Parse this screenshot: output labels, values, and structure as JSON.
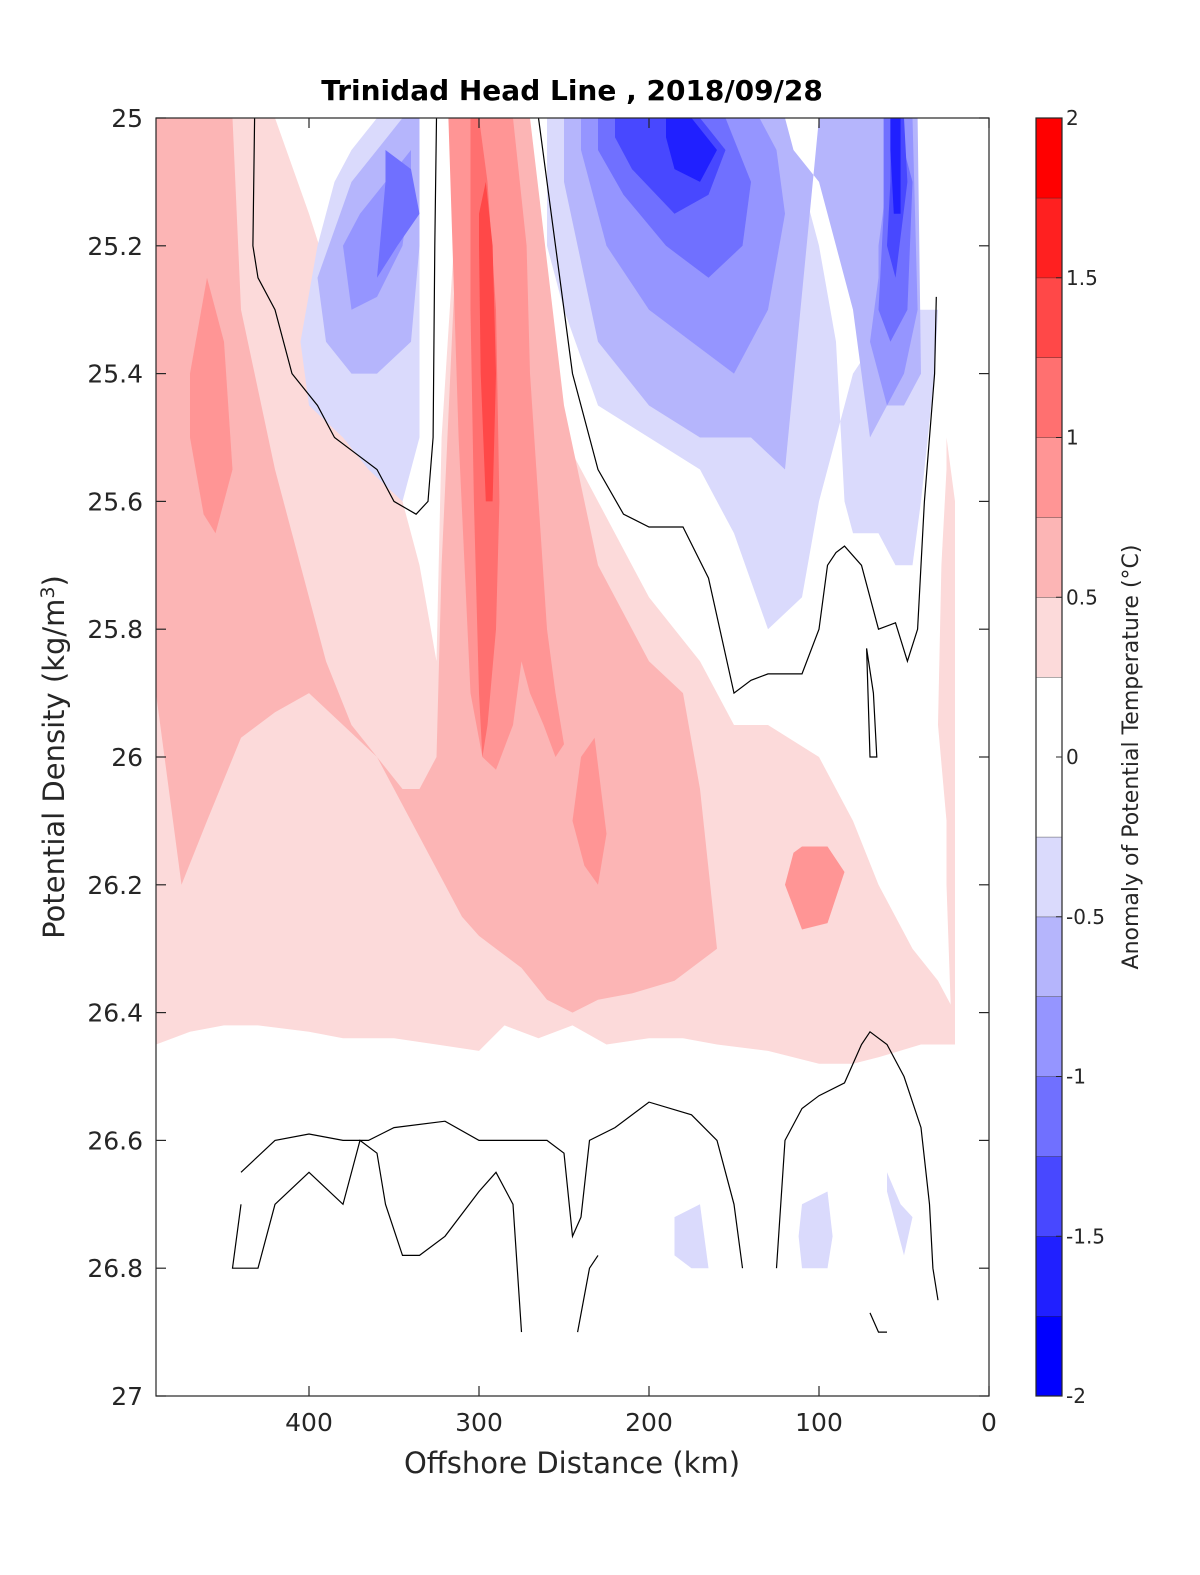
{
  "chart_data": {
    "type": "heatmap",
    "subtype": "filled-contour",
    "title": "Trinidad Head Line , 2018/09/28",
    "xlabel": "Offshore Distance (km)",
    "ylabel": "Potential Density (kg/m",
    "ylabel_superscript": "3",
    "ylabel_suffix": ")",
    "colorbar_label": "Anomaly of Potential Temperature (°C)",
    "x_axis": {
      "range": [
        490,
        0
      ],
      "reversed": true,
      "ticks": [
        400,
        300,
        200,
        100,
        0
      ],
      "tick_labels": [
        "400",
        "300",
        "200",
        "100",
        "0"
      ]
    },
    "y_axis": {
      "range": [
        25,
        27
      ],
      "reversed": true,
      "ticks": [
        25,
        25.2,
        25.4,
        25.6,
        25.8,
        26,
        26.2,
        26.4,
        26.6,
        26.8,
        27
      ],
      "tick_labels": [
        "25",
        "25.2",
        "25.4",
        "25.6",
        "25.8",
        "26",
        "26.2",
        "26.4",
        "26.6",
        "26.8",
        "27"
      ]
    },
    "colorbar": {
      "range": [
        -2,
        2
      ],
      "ticks": [
        2,
        1.5,
        1,
        0.5,
        0,
        -0.5,
        -1,
        -1.5,
        -2
      ],
      "tick_labels": [
        "2",
        "1.5",
        "1",
        "0.5",
        "0",
        "-0.5",
        "-1",
        "-1.5",
        "-2"
      ],
      "levels": [
        {
          "from": -2.0,
          "to": -1.75,
          "color": "#0000ff"
        },
        {
          "from": -1.75,
          "to": -1.5,
          "color": "#2020ff"
        },
        {
          "from": -1.5,
          "to": -1.25,
          "color": "#4848ff"
        },
        {
          "from": -1.25,
          "to": -1.0,
          "color": "#7070ff"
        },
        {
          "from": -1.0,
          "to": -0.75,
          "color": "#9595ff"
        },
        {
          "from": -0.75,
          "to": -0.5,
          "color": "#b5b5fc"
        },
        {
          "from": -0.5,
          "to": -0.25,
          "color": "#dadafc"
        },
        {
          "from": -0.25,
          "to": 0.25,
          "color": "#ffffff"
        },
        {
          "from": 0.25,
          "to": 0.5,
          "color": "#fcdada"
        },
        {
          "from": 0.5,
          "to": 0.75,
          "color": "#fcb5b5"
        },
        {
          "from": 0.75,
          "to": 1.0,
          "color": "#ff9595"
        },
        {
          "from": 1.0,
          "to": 1.25,
          "color": "#ff7070"
        },
        {
          "from": 1.25,
          "to": 1.5,
          "color": "#ff4848"
        },
        {
          "from": 1.5,
          "to": 1.75,
          "color": "#ff2020"
        },
        {
          "from": 1.75,
          "to": 2.0,
          "color": "#ff0000"
        }
      ]
    },
    "grid": false,
    "regions": [
      {
        "level": 0.375,
        "x": [
          490,
          470,
          450,
          420,
          400,
          370,
          345,
          335,
          325,
          322,
          310,
          305,
          285,
          272,
          265,
          250,
          200,
          170,
          150,
          130,
          100,
          80,
          65,
          45,
          30,
          20,
          20,
          40,
          65,
          80,
          100,
          130,
          160,
          180,
          200,
          225,
          245,
          265,
          285,
          300,
          325,
          350,
          380,
          400,
          430,
          450,
          470,
          490
        ],
        "y": [
          25.0,
          25.0,
          25.0,
          25.0,
          25.15,
          25.4,
          25.6,
          25.7,
          25.85,
          25.5,
          25.0,
          25.0,
          25.0,
          25.0,
          25.3,
          25.5,
          25.75,
          25.85,
          25.95,
          25.95,
          26.0,
          26.1,
          26.2,
          26.3,
          26.35,
          26.4,
          26.45,
          26.45,
          26.47,
          26.48,
          26.48,
          26.46,
          26.45,
          26.44,
          26.44,
          26.45,
          26.42,
          26.44,
          26.42,
          26.46,
          26.45,
          26.44,
          26.44,
          26.43,
          26.42,
          26.42,
          26.43,
          26.45
        ]
      },
      {
        "level": 0.625,
        "x": [
          490,
          480,
          460,
          445,
          440,
          420,
          400,
          390,
          375,
          360,
          345,
          335,
          325,
          322,
          310,
          300,
          280,
          270,
          250,
          230,
          200,
          180,
          170,
          160,
          185,
          210,
          230,
          245,
          260,
          275,
          290,
          300,
          310,
          320,
          340,
          360,
          380,
          400,
          420,
          440,
          460,
          475,
          490
        ],
        "y": [
          25.0,
          25.0,
          25.0,
          25.0,
          25.3,
          25.55,
          25.75,
          25.85,
          25.95,
          26.0,
          26.05,
          26.05,
          26.0,
          25.7,
          25.0,
          25.0,
          25.0,
          25.0,
          25.45,
          25.7,
          25.85,
          25.9,
          26.05,
          26.3,
          26.35,
          26.37,
          26.38,
          26.4,
          26.38,
          26.33,
          26.3,
          26.28,
          26.25,
          26.2,
          26.1,
          26.0,
          25.95,
          25.9,
          25.93,
          25.97,
          26.1,
          26.2,
          25.9
        ]
      },
      {
        "level": 0.875,
        "x": [
          470,
          460,
          450,
          445,
          455,
          462,
          470
        ],
        "y": [
          25.4,
          25.25,
          25.35,
          25.55,
          25.65,
          25.62,
          25.5
        ]
      },
      {
        "level": 0.875,
        "x": [
          318,
          310,
          300,
          290,
          280,
          272,
          270,
          265,
          260,
          255,
          250,
          255,
          262,
          270,
          275,
          280,
          290,
          298,
          305,
          312,
          318
        ],
        "y": [
          25.0,
          25.0,
          25.0,
          25.0,
          25.0,
          25.2,
          25.4,
          25.6,
          25.8,
          25.9,
          25.98,
          26.0,
          25.95,
          25.9,
          25.85,
          25.95,
          26.02,
          26.0,
          25.9,
          25.5,
          25.0
        ]
      },
      {
        "level": 0.875,
        "x": [
          245,
          240,
          232,
          225,
          230,
          238,
          245
        ],
        "y": [
          26.1,
          26.0,
          25.97,
          26.12,
          26.2,
          26.17,
          26.1
        ]
      },
      {
        "level": 0.875,
        "x": [
          110,
          95,
          85,
          95,
          110,
          120,
          115,
          110
        ],
        "y": [
          26.14,
          26.14,
          26.18,
          26.26,
          26.27,
          26.2,
          26.15,
          26.14
        ]
      },
      {
        "level": 1.125,
        "x": [
          305,
          300,
          295,
          290,
          288,
          290,
          295,
          298,
          300,
          303,
          305
        ],
        "y": [
          25.0,
          25.0,
          25.1,
          25.3,
          25.6,
          25.8,
          25.95,
          26.0,
          25.9,
          25.6,
          25.3
        ]
      },
      {
        "level": 1.375,
        "x": [
          300,
          296,
          292,
          290,
          292,
          296,
          299,
          300
        ],
        "y": [
          25.15,
          25.1,
          25.2,
          25.4,
          25.6,
          25.6,
          25.4,
          25.2
        ]
      },
      {
        "level": -0.375,
        "x": [
          335,
          345,
          360,
          375,
          385,
          395,
          405,
          400,
          380,
          365,
          345,
          335
        ],
        "y": [
          25.0,
          25.0,
          25.0,
          25.05,
          25.1,
          25.2,
          25.35,
          25.45,
          25.5,
          25.55,
          25.6,
          25.5
        ]
      },
      {
        "level": -0.375,
        "x": [
          260,
          220,
          190,
          170,
          140,
          125,
          110,
          100,
          90,
          85,
          80,
          65,
          55,
          45,
          40,
          32,
          30,
          55,
          80,
          100,
          110,
          130,
          150,
          170,
          200,
          230,
          250,
          260
        ],
        "y": [
          25.0,
          25.0,
          25.0,
          25.0,
          25.0,
          25.0,
          25.1,
          25.2,
          25.35,
          25.6,
          25.65,
          25.65,
          25.7,
          25.7,
          25.6,
          25.4,
          25.3,
          25.3,
          25.4,
          25.6,
          25.75,
          25.8,
          25.65,
          25.55,
          25.5,
          25.45,
          25.3,
          25.2
        ]
      },
      {
        "level": -0.625,
        "x": [
          335,
          345,
          360,
          375,
          395,
          390,
          375,
          360,
          340,
          335
        ],
        "y": [
          25.0,
          25.0,
          25.05,
          25.1,
          25.25,
          25.35,
          25.4,
          25.4,
          25.35,
          25.2
        ]
      },
      {
        "level": -0.625,
        "x": [
          250,
          220,
          190,
          160,
          140,
          120,
          115,
          100,
          90,
          80,
          70,
          60,
          50,
          40,
          42,
          60,
          80,
          90,
          100,
          120,
          140,
          170,
          200,
          230,
          250
        ],
        "y": [
          25.0,
          25.0,
          25.0,
          25.0,
          25.0,
          25.0,
          25.05,
          25.1,
          25.2,
          25.3,
          25.5,
          25.45,
          25.45,
          25.4,
          25.0,
          25.0,
          25.0,
          25.0,
          25.0,
          25.55,
          25.5,
          25.5,
          25.45,
          25.35,
          25.1
        ]
      },
      {
        "level": -0.875,
        "x": [
          340,
          355,
          370,
          380,
          375,
          360,
          345,
          340
        ],
        "y": [
          25.05,
          25.1,
          25.15,
          25.2,
          25.3,
          25.28,
          25.2,
          25.1
        ]
      },
      {
        "level": -0.875,
        "x": [
          240,
          215,
          190,
          160,
          135,
          125,
          120,
          130,
          150,
          175,
          200,
          225,
          240
        ],
        "y": [
          25.0,
          25.0,
          25.0,
          25.0,
          25.0,
          25.05,
          25.15,
          25.3,
          25.4,
          25.35,
          25.3,
          25.2,
          25.05
        ]
      },
      {
        "level": -0.875,
        "x": [
          65,
          55,
          45,
          42,
          50,
          60,
          70,
          65
        ],
        "y": [
          25.2,
          25.0,
          25.0,
          25.3,
          25.4,
          25.45,
          25.35,
          25.25
        ]
      },
      {
        "level": -1.125,
        "x": [
          355,
          340,
          335,
          348,
          360,
          355
        ],
        "y": [
          25.05,
          25.08,
          25.15,
          25.2,
          25.25,
          25.1
        ]
      },
      {
        "level": -1.125,
        "x": [
          230,
          200,
          180,
          155,
          140,
          145,
          165,
          190,
          215,
          230
        ],
        "y": [
          25.0,
          25.0,
          25.0,
          25.0,
          25.1,
          25.2,
          25.25,
          25.2,
          25.12,
          25.05
        ]
      },
      {
        "level": -1.125,
        "x": [
          62,
          55,
          45,
          48,
          58,
          65,
          62
        ],
        "y": [
          25.0,
          25.0,
          25.1,
          25.3,
          25.35,
          25.3,
          25.15
        ]
      },
      {
        "level": -1.375,
        "x": [
          220,
          195,
          170,
          155,
          165,
          185,
          210,
          220
        ],
        "y": [
          25.0,
          25.0,
          25.0,
          25.05,
          25.12,
          25.15,
          25.08,
          25.03
        ]
      },
      {
        "level": -1.375,
        "x": [
          58,
          50,
          48,
          55,
          60,
          58
        ],
        "y": [
          25.0,
          25.0,
          25.1,
          25.25,
          25.2,
          25.1
        ]
      },
      {
        "level": -1.625,
        "x": [
          190,
          175,
          160,
          170,
          185,
          190
        ],
        "y": [
          25.0,
          25.0,
          25.05,
          25.1,
          25.08,
          25.03
        ]
      },
      {
        "level": -1.625,
        "x": [
          58,
          52,
          52,
          56,
          58
        ],
        "y": [
          25.0,
          25.0,
          25.15,
          25.15,
          25.05
        ]
      },
      {
        "level": -0.375,
        "x": [
          185,
          170,
          165,
          175,
          185
        ],
        "y": [
          26.72,
          26.7,
          26.8,
          26.8,
          26.78
        ]
      },
      {
        "level": -0.375,
        "x": [
          110,
          95,
          92,
          95,
          110,
          112
        ],
        "y": [
          26.7,
          26.68,
          26.75,
          26.8,
          26.8,
          26.75
        ]
      },
      {
        "level": -0.375,
        "x": [
          60,
          52,
          45,
          50,
          60
        ],
        "y": [
          26.65,
          26.7,
          26.72,
          26.78,
          26.68
        ]
      },
      {
        "level": 0.375,
        "x": [
          25,
          20,
          20,
          25,
          30,
          28,
          25
        ],
        "y": [
          25.5,
          25.6,
          25.9,
          26.1,
          25.95,
          25.7,
          25.55
        ]
      },
      {
        "level": 0.375,
        "x": [
          25,
          20,
          20,
          22,
          25
        ],
        "y": [
          25.95,
          25.9,
          26.4,
          26.43,
          26.2
        ]
      }
    ],
    "contour_lines_zero": [
      {
        "x": [
          432,
          433,
          430,
          420,
          410,
          395,
          385,
          375,
          360,
          350,
          337,
          330,
          327,
          326,
          325
        ],
        "y": [
          25.0,
          25.2,
          25.25,
          25.3,
          25.4,
          25.45,
          25.5,
          25.52,
          25.55,
          25.6,
          25.62,
          25.6,
          25.5,
          25.2,
          25.0
        ]
      },
      {
        "x": [
          265,
          255,
          245,
          230,
          215,
          200,
          180,
          165,
          150,
          140,
          130,
          110,
          100,
          95,
          90,
          85,
          75,
          65,
          55,
          48,
          42,
          38,
          32,
          31
        ],
        "y": [
          25.0,
          25.2,
          25.4,
          25.55,
          25.62,
          25.64,
          25.64,
          25.72,
          25.9,
          25.88,
          25.87,
          25.87,
          25.8,
          25.7,
          25.68,
          25.67,
          25.7,
          25.8,
          25.79,
          25.85,
          25.8,
          25.6,
          25.4,
          25.28
        ]
      },
      {
        "x": [
          72,
          68,
          66,
          70,
          72
        ],
        "y": [
          25.83,
          25.9,
          26.0,
          26.0,
          25.83
        ]
      },
      {
        "x": [
          440,
          420,
          400,
          380,
          365,
          350,
          320,
          300,
          280,
          260,
          250,
          245,
          240,
          235,
          220,
          200,
          175,
          160,
          150,
          145
        ],
        "y": [
          26.65,
          26.6,
          26.59,
          26.6,
          26.6,
          26.58,
          26.57,
          26.6,
          26.6,
          26.6,
          26.62,
          26.75,
          26.72,
          26.6,
          26.58,
          26.54,
          26.56,
          26.6,
          26.7,
          26.8
        ]
      },
      {
        "x": [
          440,
          445,
          430,
          420,
          400,
          380,
          370,
          360,
          355,
          345,
          335,
          320,
          300,
          290,
          280,
          275
        ],
        "y": [
          26.7,
          26.8,
          26.8,
          26.7,
          26.65,
          26.7,
          26.6,
          26.62,
          26.7,
          26.78,
          26.78,
          26.75,
          26.68,
          26.65,
          26.7,
          26.9
        ]
      },
      {
        "x": [
          125,
          120,
          110,
          100,
          85,
          75,
          70,
          60,
          50,
          40,
          35,
          33,
          30
        ],
        "y": [
          26.8,
          26.6,
          26.55,
          26.53,
          26.51,
          26.45,
          26.43,
          26.45,
          26.5,
          26.58,
          26.7,
          26.8,
          26.85
        ]
      },
      {
        "x": [
          242,
          235,
          230
        ],
        "y": [
          26.9,
          26.8,
          26.78
        ]
      },
      {
        "x": [
          70,
          65,
          60
        ],
        "y": [
          26.87,
          26.9,
          26.9
        ]
      }
    ]
  }
}
